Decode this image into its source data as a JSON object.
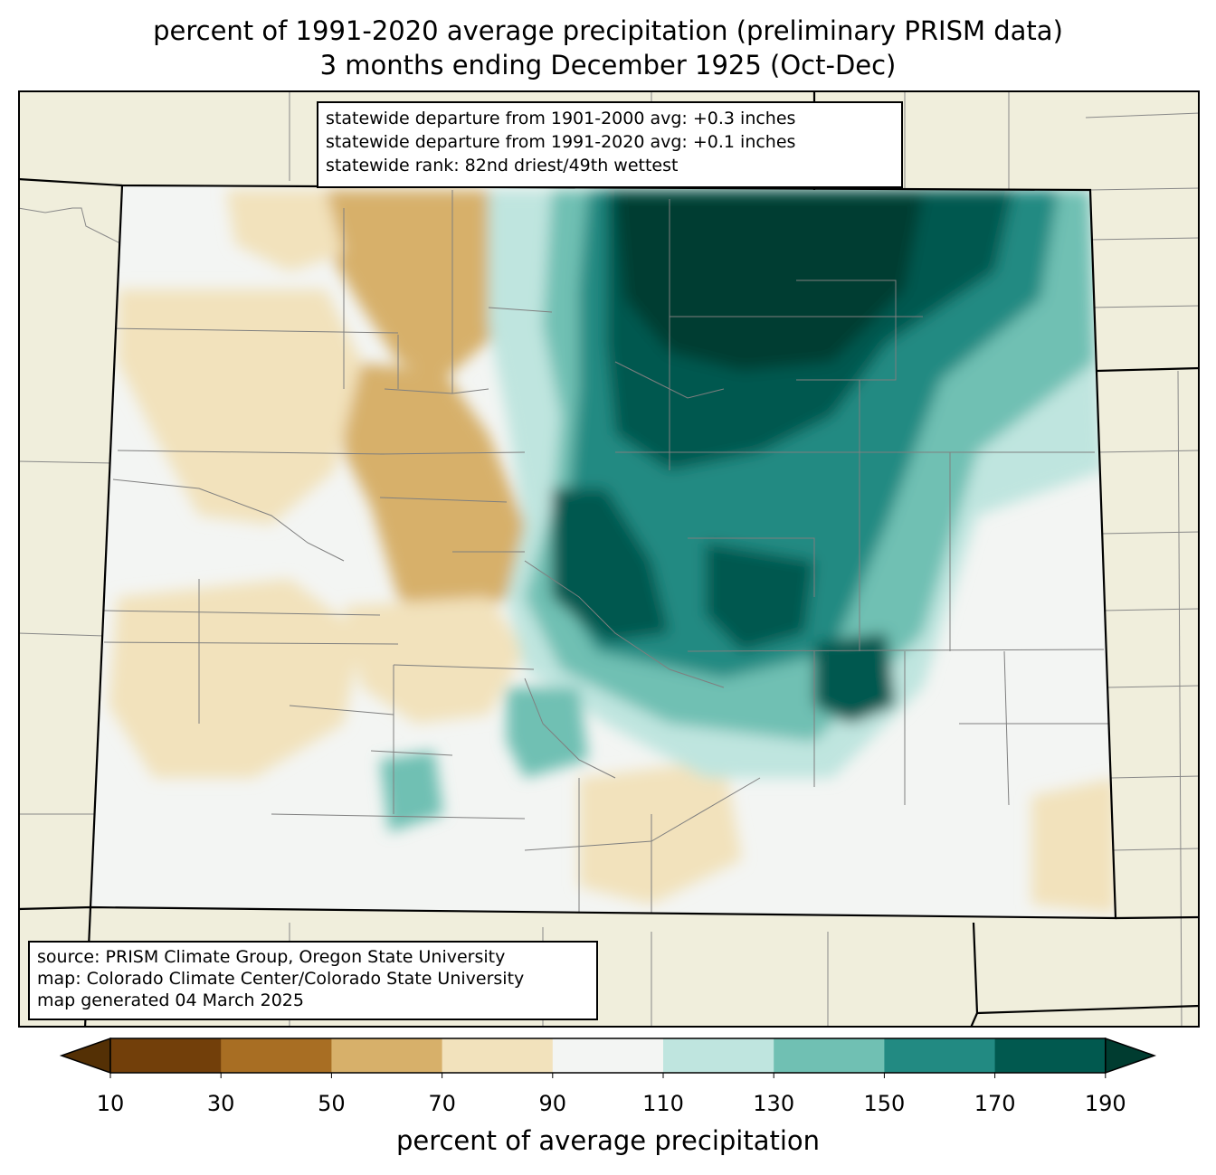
{
  "title": {
    "line1": "percent of 1991-2020 average precipitation (preliminary PRISM data)",
    "line2": "3 months ending December 1925 (Oct-Dec)"
  },
  "stats": {
    "line1": "statewide departure from 1901-2000 avg: +0.3 inches",
    "line2": "statewide departure from 1991-2020 avg: +0.1 inches",
    "line3": "statewide rank: 82nd driest/49th wettest"
  },
  "credits": {
    "line1": "source: PRISM Climate Group, Oregon State University",
    "line2": "map: Colorado Climate Center/Colorado State University",
    "line3": "map generated 04 March 2025"
  },
  "colorbar": {
    "label": "percent of average precipitation",
    "ticks": [
      "10",
      "30",
      "50",
      "70",
      "90",
      "110",
      "130",
      "150",
      "170",
      "190"
    ],
    "colors": [
      "#543005",
      "#723f0a",
      "#a86e23",
      "#d7b06a",
      "#f2e2bc",
      "#f3f5f3",
      "#bfe5df",
      "#70c0b3",
      "#228a82",
      "#01594f",
      "#003c30"
    ]
  },
  "map": {
    "background_color": "#f0eedc"
  }
}
